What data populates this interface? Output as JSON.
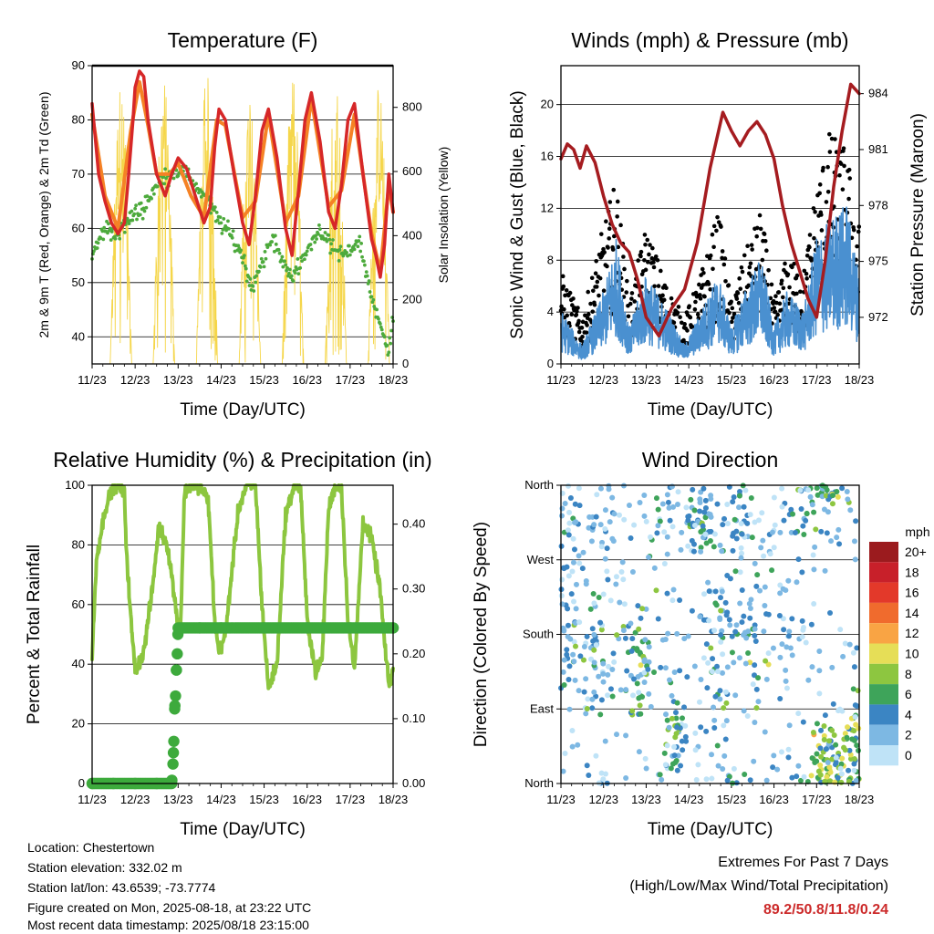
{
  "chart_data": [
    {
      "type": "line",
      "title": "Temperature (F)",
      "xlabel": "Time (Day/UTC)",
      "ylabel": "2m & 9m T (Red, Orange) & 2m Td (Green)",
      "y2label": "Solar Insolation (Yellow)",
      "xticks": [
        "11/23",
        "12/23",
        "13/23",
        "14/23",
        "15/23",
        "16/23",
        "17/23",
        "18/23"
      ],
      "ylim": [
        35,
        90
      ],
      "yticks": [
        40,
        50,
        60,
        70,
        80,
        90
      ],
      "y2lim": [
        0,
        930
      ],
      "y2ticks": [
        0,
        200,
        400,
        600,
        800
      ],
      "grid": true,
      "series": [
        {
          "key": "t2",
          "color": "#d62728",
          "x": [
            0,
            0.15,
            0.3,
            0.45,
            0.6,
            0.75,
            0.85,
            0.95,
            1.0,
            1.1,
            1.2,
            1.3,
            1.5,
            1.7,
            1.85,
            2.0,
            2.2,
            2.4,
            2.6,
            2.75,
            2.85,
            2.95,
            3.1,
            3.3,
            3.5,
            3.65,
            3.8,
            3.95,
            4.1,
            4.3,
            4.5,
            4.65,
            4.8,
            4.95,
            5.1,
            5.3,
            5.5,
            5.65,
            5.8,
            5.95,
            6.1,
            6.3,
            6.5,
            6.6,
            6.7,
            6.8,
            6.9,
            7.0
          ],
          "y": [
            83,
            70,
            65,
            61,
            59,
            61,
            70,
            80,
            86,
            89,
            88,
            80,
            70,
            66,
            70,
            73,
            71,
            66,
            61,
            64,
            75,
            82,
            80,
            70,
            61,
            57,
            66,
            78,
            82,
            73,
            60,
            55,
            67,
            80,
            85,
            76,
            63,
            60,
            68,
            80,
            83,
            70,
            58,
            55,
            51,
            57,
            70,
            63
          ]
        },
        {
          "key": "t9",
          "color": "#f58225",
          "x": [
            0,
            0.3,
            0.6,
            0.9,
            1.1,
            1.3,
            1.5,
            1.8,
            2.0,
            2.3,
            2.6,
            2.9,
            3.1,
            3.5,
            3.8,
            4.1,
            4.5,
            4.8,
            5.1,
            5.5,
            5.8,
            6.1,
            6.5,
            6.7,
            6.9,
            7.0
          ],
          "y": [
            81,
            66,
            60,
            78,
            87,
            79,
            70,
            70,
            72,
            66,
            62,
            80,
            79,
            62,
            65,
            81,
            61,
            66,
            84,
            64,
            67,
            81,
            59,
            52,
            68,
            63
          ]
        },
        {
          "key": "td",
          "color": "#4daa3c",
          "x": [
            0,
            0.3,
            0.6,
            0.9,
            1.2,
            1.5,
            1.8,
            2.0,
            2.3,
            2.6,
            2.9,
            3.2,
            3.5,
            3.7,
            3.9,
            4.2,
            4.5,
            4.7,
            5.0,
            5.3,
            5.6,
            5.9,
            6.2,
            6.4,
            6.6,
            6.8,
            6.9,
            7.0
          ],
          "y": [
            55,
            60,
            59,
            62,
            64,
            68,
            70,
            71,
            69,
            66,
            62,
            59,
            55,
            49,
            53,
            58,
            53,
            51,
            56,
            60,
            56,
            55,
            58,
            51,
            44,
            40,
            38,
            44
          ]
        }
      ],
      "insolation": {
        "color": "#f5d64a",
        "peaks": [
          0,
          900,
          0,
          910,
          880,
          920,
          900,
          0,
          900
        ],
        "day_offsets": [
          1.6,
          2.6,
          3.6,
          4.6,
          5.6,
          6.6
        ]
      }
    },
    {
      "type": "scatter",
      "title": "Winds (mph) & Pressure (mb)",
      "xlabel": "Time (Day/UTC)",
      "ylabel": "Sonic Wind & Gust (Blue, Black)",
      "y2label": "Station Pressure (Maroon)",
      "xticks": [
        "11/23",
        "12/23",
        "13/23",
        "14/23",
        "15/23",
        "16/23",
        "17/23",
        "18/23"
      ],
      "ylim": [
        0,
        23
      ],
      "yticks": [
        0,
        4,
        8,
        12,
        16,
        20
      ],
      "y2lim": [
        969.5,
        985.5
      ],
      "y2ticks": [
        972,
        975,
        978,
        981,
        984
      ],
      "grid": true,
      "wind_envelope": {
        "x": [
          0,
          0.5,
          1.0,
          1.3,
          1.6,
          2.0,
          2.5,
          2.9,
          3.3,
          3.7,
          4.0,
          4.3,
          4.7,
          5.0,
          5.3,
          5.7,
          6.0,
          6.3,
          6.7,
          7.0
        ],
        "y": [
          3,
          1,
          4,
          7,
          2,
          5,
          3,
          1,
          3,
          5,
          2,
          4,
          6,
          2,
          4,
          3,
          7,
          8,
          9,
          5
        ]
      },
      "gust_envelope": {
        "x": [
          0,
          0.5,
          1.0,
          1.3,
          1.6,
          2.0,
          2.5,
          2.9,
          3.3,
          3.7,
          4.0,
          4.3,
          4.7,
          5.0,
          5.3,
          5.7,
          6.0,
          6.3,
          6.7,
          7.0
        ],
        "y": [
          6,
          3,
          9,
          12,
          4,
          9,
          5,
          3,
          6,
          10,
          4,
          7,
          10,
          4,
          7,
          6,
          12,
          15,
          14,
          9
        ]
      },
      "pressure": {
        "name": "Station Pressure",
        "color": "#a51c20",
        "x": [
          0,
          0.15,
          0.3,
          0.45,
          0.6,
          0.8,
          1.0,
          1.2,
          1.4,
          1.6,
          1.8,
          2.0,
          2.3,
          2.6,
          2.9,
          3.2,
          3.5,
          3.8,
          4.0,
          4.2,
          4.4,
          4.6,
          4.8,
          5.0,
          5.2,
          5.4,
          5.6,
          5.8,
          6.0,
          6.2,
          6.4,
          6.6,
          6.8,
          7.0
        ],
        "y": [
          980.5,
          981.3,
          981.0,
          980.0,
          981.2,
          980.3,
          978.5,
          977.0,
          976.0,
          975.5,
          974.0,
          972.0,
          971.0,
          972.5,
          973.5,
          976.0,
          980.0,
          983.0,
          982.0,
          981.2,
          982.0,
          982.5,
          981.8,
          980.5,
          978.0,
          976.0,
          974.5,
          973.0,
          972.0,
          975.0,
          979.0,
          982.0,
          984.5,
          984.0
        ]
      }
    },
    {
      "type": "line",
      "title": "Relative Humidity (%) & Precipitation (in)",
      "xlabel": "Time (Day/UTC)",
      "ylabel": "Percent & Total Rainfall",
      "xticks": [
        "11/23",
        "12/23",
        "13/23",
        "14/23",
        "15/23",
        "16/23",
        "17/23",
        "18/23"
      ],
      "ylim": [
        0,
        100
      ],
      "yticks": [
        0,
        20,
        40,
        60,
        80,
        100
      ],
      "y2lim": [
        0,
        0.46
      ],
      "y2ticks": [
        0.0,
        0.1,
        0.2,
        0.3,
        0.4
      ],
      "y2ticklabels": [
        "0.00",
        "0.10",
        "0.20",
        "0.30",
        "0.40"
      ],
      "grid": true,
      "rh": {
        "color": "#8cc63f",
        "x": [
          0,
          0.1,
          0.3,
          0.5,
          0.6,
          0.75,
          0.8,
          0.9,
          1.0,
          1.2,
          1.4,
          1.55,
          1.75,
          1.85,
          1.95,
          2.05,
          2.15,
          2.3,
          2.5,
          2.7,
          2.85,
          2.95,
          3.1,
          3.4,
          3.6,
          3.8,
          3.95,
          4.1,
          4.3,
          4.5,
          4.7,
          4.85,
          5.0,
          5.2,
          5.35,
          5.5,
          5.65,
          5.8,
          5.95,
          6.1,
          6.3,
          6.5,
          6.7,
          6.8,
          6.9,
          7.0
        ],
        "y": [
          42,
          75,
          92,
          100,
          100,
          97,
          78,
          55,
          38,
          44,
          65,
          86,
          80,
          70,
          58,
          50,
          98,
          100,
          100,
          95,
          55,
          44,
          50,
          92,
          100,
          100,
          60,
          32,
          40,
          90,
          100,
          99,
          55,
          37,
          42,
          92,
          100,
          99,
          55,
          38,
          88,
          82,
          65,
          47,
          33,
          38
        ]
      },
      "precip": {
        "color": "#3daa3c",
        "x": [
          0,
          0.5,
          1.0,
          1.5,
          1.85,
          1.88,
          1.9,
          1.92,
          1.94,
          1.96,
          1.98,
          2.0,
          2.5,
          3.0,
          4.0,
          5.0,
          6.0,
          7.0
        ],
        "y": [
          0,
          0,
          0,
          0,
          0,
          0.03,
          0.065,
          0.115,
          0.135,
          0.175,
          0.2,
          0.24,
          0.24,
          0.24,
          0.24,
          0.24,
          0.24,
          0.24
        ]
      }
    },
    {
      "type": "scatter",
      "title": "Wind Direction",
      "xlabel": "Time (Day/UTC)",
      "ylabel": "Direction (Colored By Speed)",
      "xticks": [
        "11/23",
        "12/23",
        "13/23",
        "14/23",
        "15/23",
        "16/23",
        "17/23",
        "18/23"
      ],
      "ylim": [
        0,
        360
      ],
      "yticks": [
        0,
        90,
        180,
        270,
        360
      ],
      "yticklabels": [
        "North",
        "East",
        "South",
        "West",
        "North"
      ],
      "grid": true,
      "colorbar": {
        "title": "mph",
        "labels": [
          "20+",
          "18",
          "16",
          "14",
          "12",
          "10",
          "8",
          "6",
          "4",
          "2",
          "0"
        ],
        "colors": [
          "#9b1b1e",
          "#c8202a",
          "#e3392a",
          "#f06b2d",
          "#f9a444",
          "#e6de57",
          "#8dc640",
          "#3ea45a",
          "#3b85c3",
          "#7db8e3",
          "#bfe3f7"
        ]
      },
      "clusters": [
        {
          "x": 0.2,
          "y": 180,
          "sx": 0.15,
          "sy": 50,
          "n": 35,
          "speed": 3
        },
        {
          "x": 0.3,
          "y": 310,
          "sx": 0.2,
          "sy": 40,
          "n": 30,
          "speed": 2
        },
        {
          "x": 0.9,
          "y": 160,
          "sx": 0.2,
          "sy": 40,
          "n": 45,
          "speed": 4
        },
        {
          "x": 1.2,
          "y": 310,
          "sx": 0.3,
          "sy": 40,
          "n": 35,
          "speed": 2
        },
        {
          "x": 1.8,
          "y": 140,
          "sx": 0.2,
          "sy": 50,
          "n": 50,
          "speed": 5
        },
        {
          "x": 2.5,
          "y": 320,
          "sx": 0.3,
          "sy": 35,
          "n": 35,
          "speed": 3
        },
        {
          "x": 2.7,
          "y": 45,
          "sx": 0.15,
          "sy": 40,
          "n": 40,
          "speed": 5
        },
        {
          "x": 3.3,
          "y": 320,
          "sx": 0.15,
          "sy": 20,
          "n": 45,
          "speed": 4
        },
        {
          "x": 3.7,
          "y": 140,
          "sx": 0.2,
          "sy": 50,
          "n": 40,
          "speed": 4
        },
        {
          "x": 4.2,
          "y": 320,
          "sx": 0.25,
          "sy": 30,
          "n": 45,
          "speed": 3
        },
        {
          "x": 4.5,
          "y": 170,
          "sx": 0.2,
          "sy": 50,
          "n": 30,
          "speed": 5
        },
        {
          "x": 5.3,
          "y": 250,
          "sx": 0.4,
          "sy": 90,
          "n": 50,
          "speed": 2
        },
        {
          "x": 5.7,
          "y": 340,
          "sx": 0.15,
          "sy": 20,
          "n": 25,
          "speed": 4
        },
        {
          "x": 6.2,
          "y": 355,
          "sx": 0.15,
          "sy": 8,
          "n": 25,
          "speed": 6
        },
        {
          "x": 6.3,
          "y": 30,
          "sx": 0.25,
          "sy": 25,
          "n": 70,
          "speed": 7
        },
        {
          "x": 6.85,
          "y": 60,
          "sx": 0.12,
          "sy": 40,
          "n": 40,
          "speed": 7
        }
      ]
    }
  ],
  "footer": {
    "location": "Location: Chestertown",
    "elevation": "Station elevation: 332.02 m",
    "latlon": "Station lat/lon: 43.6539; -73.7774",
    "created": "Figure created on Mon, 2025-08-18, at 23:22 UTC",
    "recent": "Most recent data timestamp: 2025/08/18 23:15:00"
  },
  "extremes": {
    "title": "Extremes For Past 7 Days",
    "subtitle": "(High/Low/Max Wind/Total Precipitation)",
    "values": "89.2/50.8/11.8/0.24"
  }
}
